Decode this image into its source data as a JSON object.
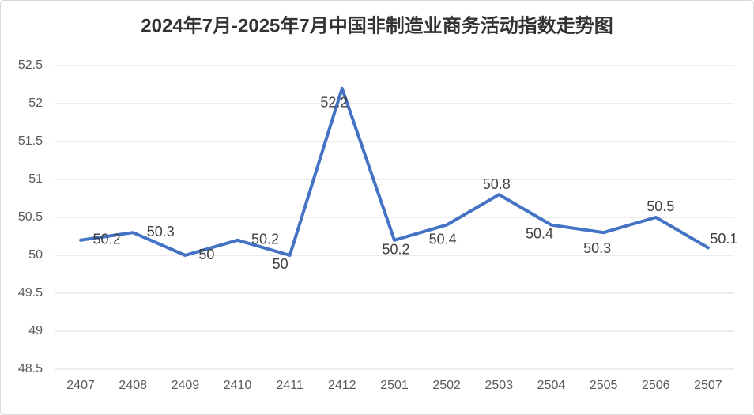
{
  "chart_data": {
    "type": "line",
    "title": "2024年7月-2025年7月中国非制造业商务活动指数走势图",
    "categories": [
      "2407",
      "2408",
      "2409",
      "2410",
      "2411",
      "2412",
      "2501",
      "2502",
      "2503",
      "2504",
      "2505",
      "2506",
      "2507"
    ],
    "values": [
      50.2,
      50.3,
      50,
      50.2,
      50,
      52.2,
      50.2,
      50.4,
      50.8,
      50.4,
      50.3,
      50.5,
      50.1
    ],
    "color": "#4472c4",
    "ylim": [
      48.5,
      52.5
    ],
    "yticks": [
      48.5,
      49,
      49.5,
      50,
      50.5,
      51,
      51.5,
      52,
      52.5
    ],
    "grid": true
  }
}
